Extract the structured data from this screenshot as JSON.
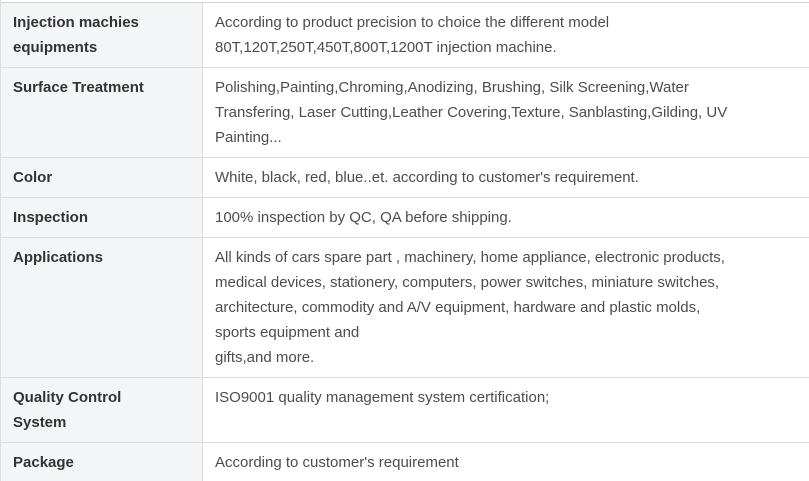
{
  "table": {
    "colors": {
      "label_background": "#f4f5f7",
      "border": "#dcdcdc",
      "label_text": "#333333",
      "value_text": "#4d4d4d",
      "page_background": "#ffffff"
    },
    "rows": [
      {
        "label": "Injection machies\nequipments",
        "value": "According to product precision to choice the different model\n80T,120T,250T,450T,800T,1200T injection machine."
      },
      {
        "label": "Surface Treatment",
        "value": "Polishing,Painting,Chroming,Anodizing, Brushing, Silk Screening,Water\nTransfering, Laser Cutting,Leather Covering,Texture, Sanblasting,Gilding, UV\nPainting..."
      },
      {
        "label": "Color",
        "value": "White, black, red, blue..et. according to customer's requirement."
      },
      {
        "label": "Inspection",
        "value": "100% inspection by QC, QA before shipping."
      },
      {
        "label": "Applications",
        "value": "All kinds of cars spare part , machinery, home appliance, electronic products,\nmedical devices, stationery, computers, power switches, miniature switches,\narchitecture, commodity and A/V equipment, hardware and plastic molds,\nsports equipment and\ngifts,and more."
      },
      {
        "label": "Quality Control\nSystem",
        "value": "ISO9001 quality management system certification;"
      },
      {
        "label": "Package",
        "value": "According to customer's requirement"
      }
    ]
  }
}
